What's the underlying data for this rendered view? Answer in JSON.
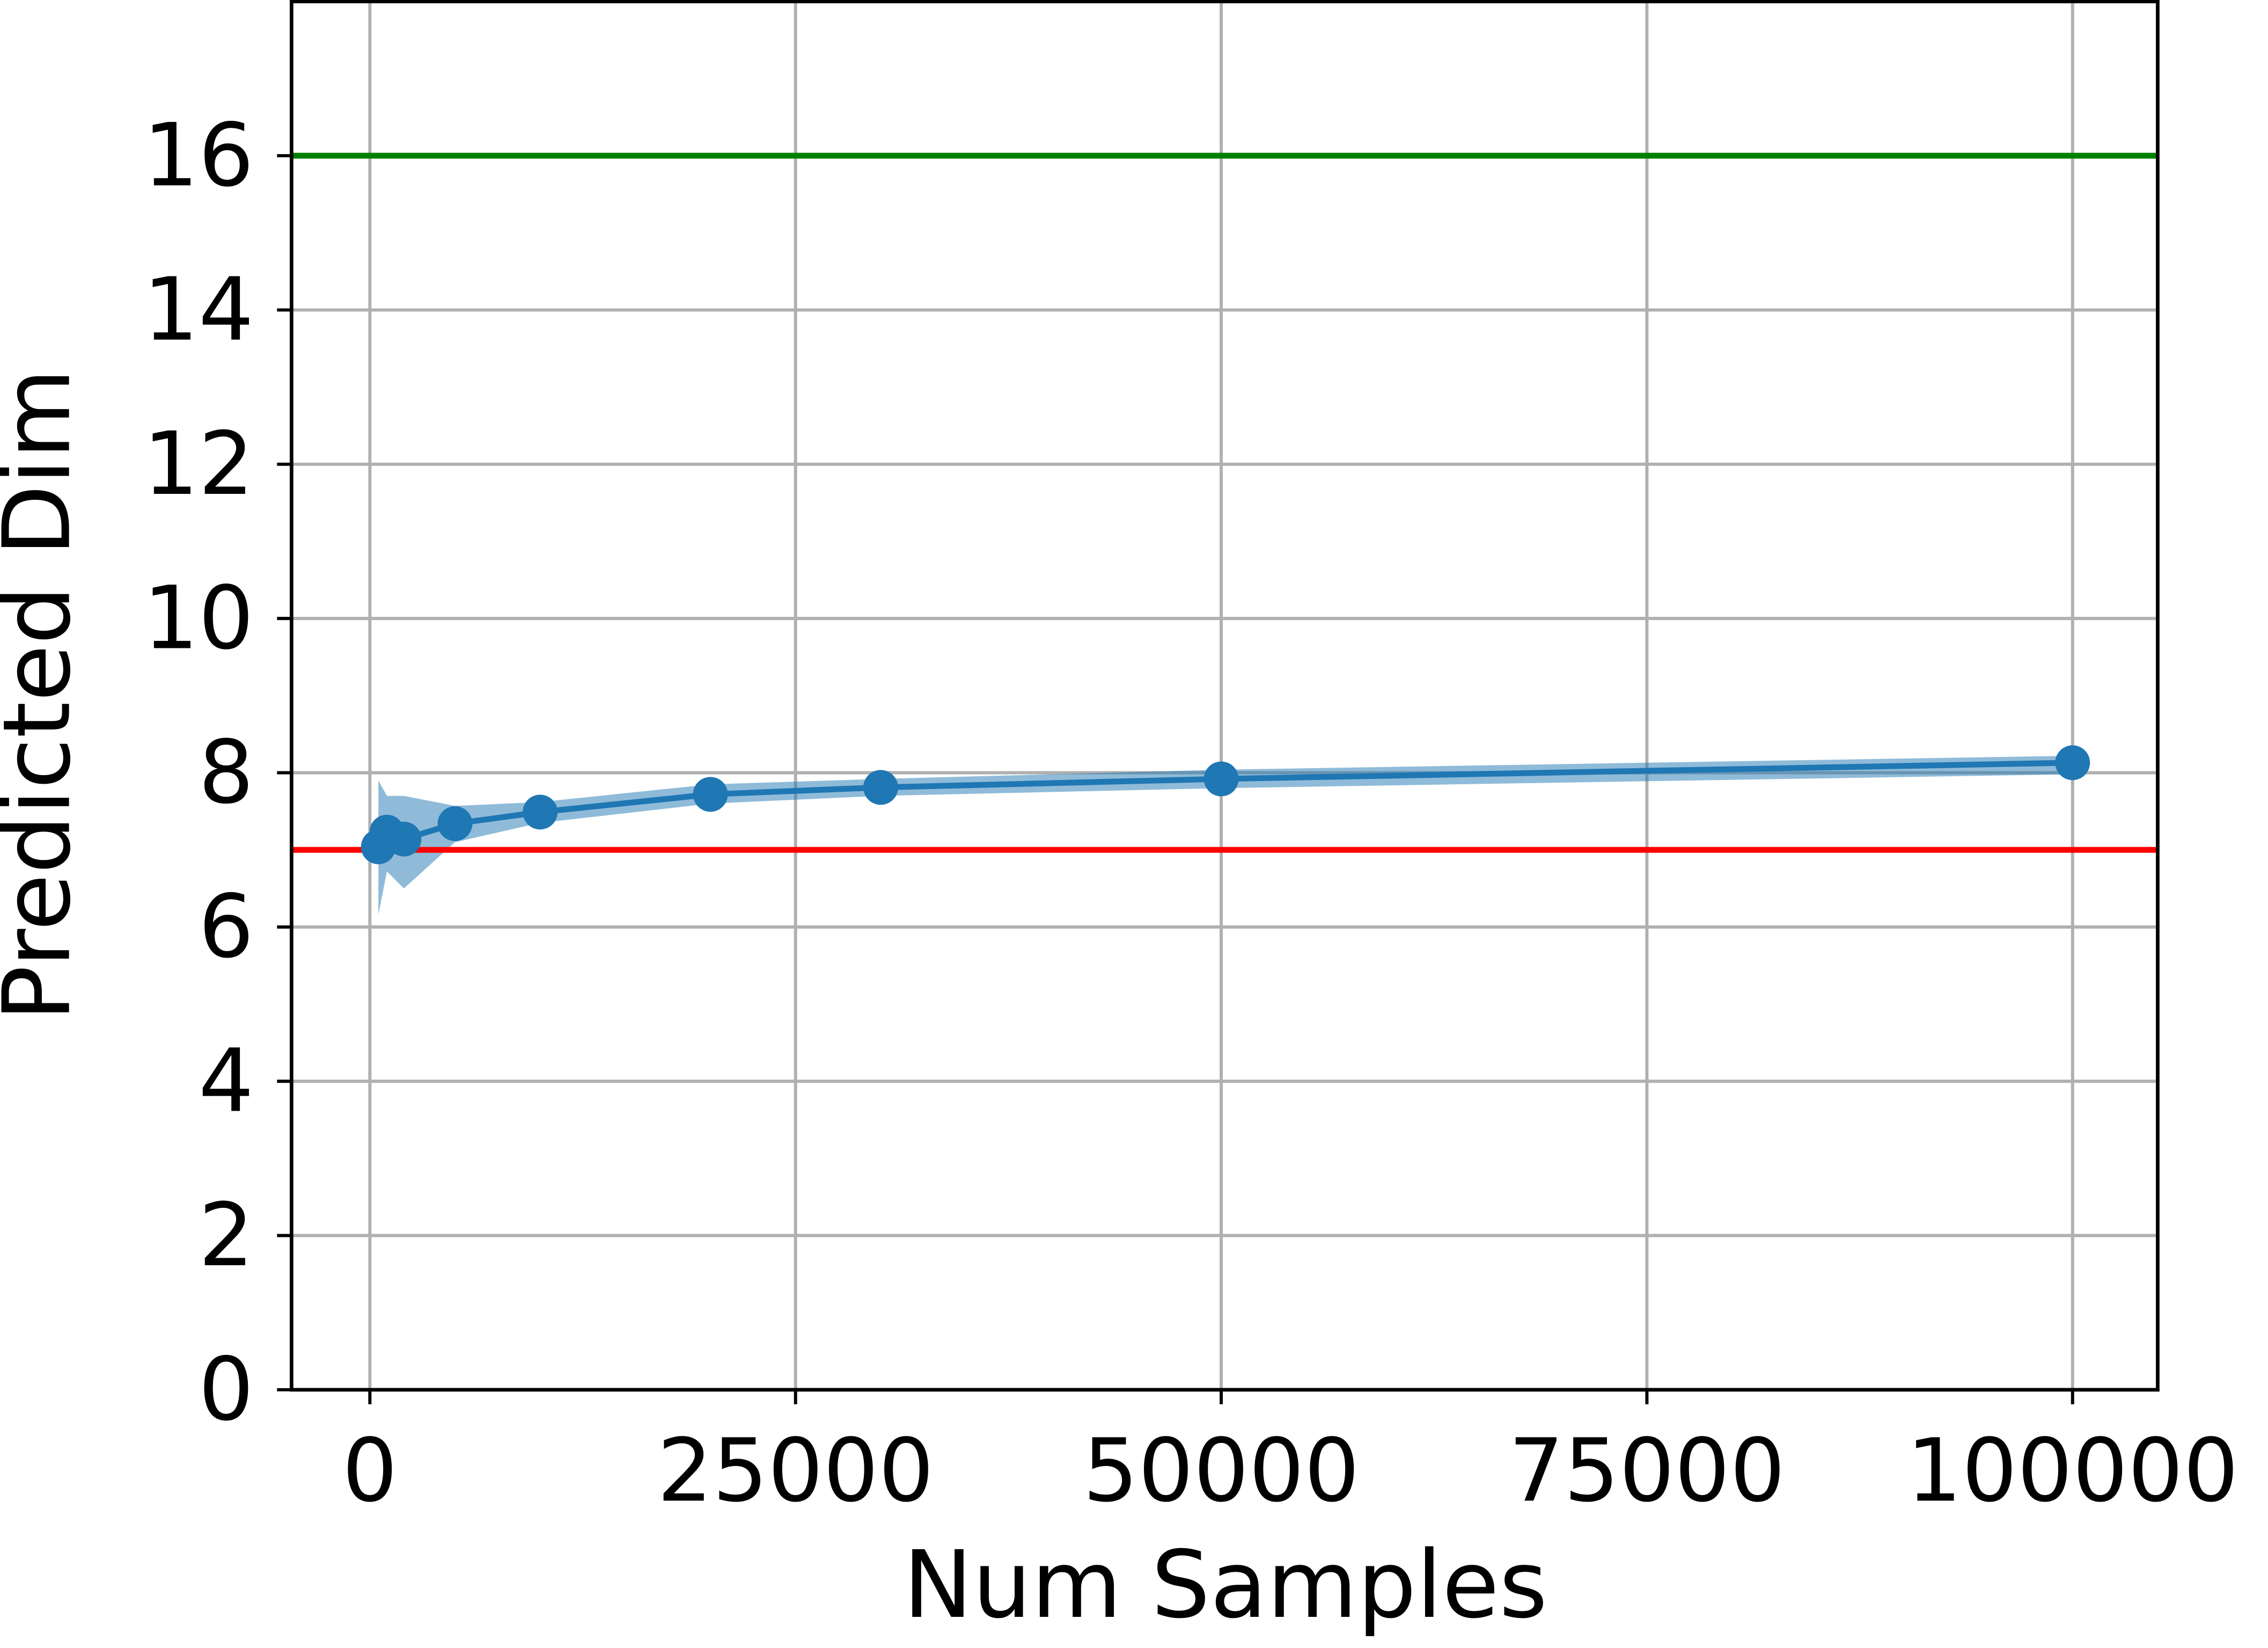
{
  "chart_data": {
    "type": "line",
    "x_label": "Num Samples",
    "y_label": "Predicted Dim",
    "x": [
      500,
      1000,
      2000,
      5000,
      10000,
      20000,
      30000,
      50000,
      100000
    ],
    "values": [
      7.04,
      7.23,
      7.14,
      7.34,
      7.49,
      7.72,
      7.81,
      7.92,
      8.13
    ],
    "lower": [
      6.16,
      6.72,
      6.5,
      7.1,
      7.35,
      7.6,
      7.7,
      7.8,
      7.98
    ],
    "upper": [
      7.9,
      7.7,
      7.7,
      7.57,
      7.62,
      7.85,
      7.92,
      8.04,
      8.22
    ],
    "color": "#1f77b4",
    "band_color": "#1f77b4",
    "hlines": [
      {
        "value": 7,
        "color": "#ff0000"
      },
      {
        "value": 16,
        "color": "#008000"
      }
    ],
    "xlim": [
      -4600,
      105000
    ],
    "ylim": [
      0,
      18
    ],
    "xticks": [
      0,
      25000,
      50000,
      75000,
      100000
    ],
    "yticks": [
      0,
      2,
      4,
      6,
      8,
      10,
      12,
      14,
      16
    ],
    "grid": true
  }
}
